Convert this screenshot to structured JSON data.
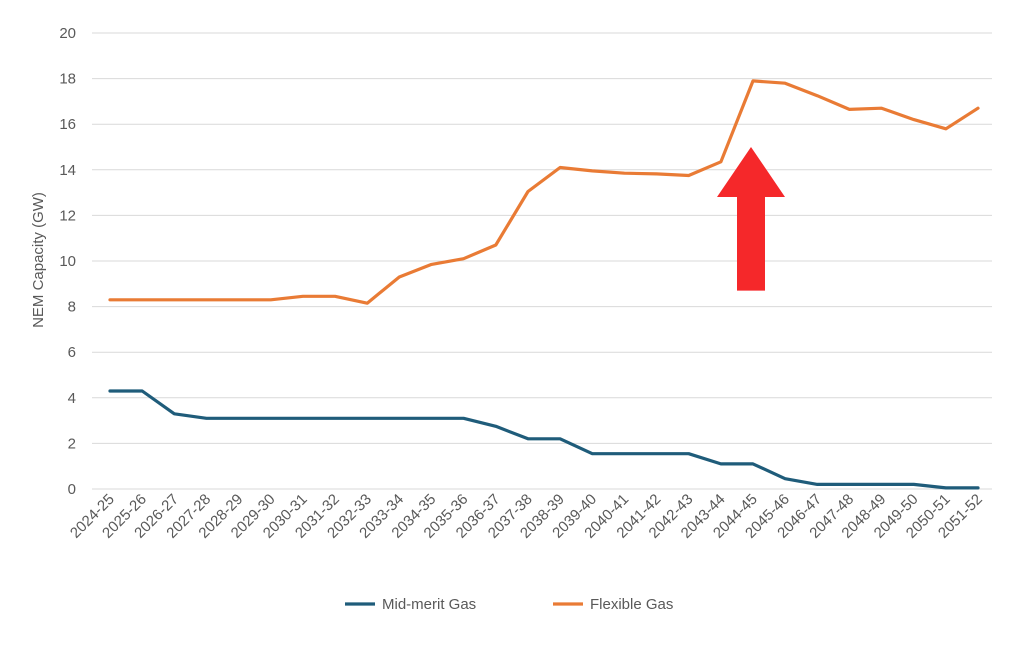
{
  "chart_data": {
    "type": "line",
    "title": "",
    "xlabel": "",
    "ylabel": "NEM Capacity (GW)",
    "ylim": [
      0,
      20
    ],
    "yticks": [
      0,
      2,
      4,
      6,
      8,
      10,
      12,
      14,
      16,
      18,
      20
    ],
    "grid": true,
    "legend_position": "bottom",
    "categories": [
      "2024-25",
      "2025-26",
      "2026-27",
      "2027-28",
      "2028-29",
      "2029-30",
      "2030-31",
      "2031-32",
      "2032-33",
      "2033-34",
      "2034-35",
      "2035-36",
      "2036-37",
      "2037-38",
      "2038-39",
      "2039-40",
      "2040-41",
      "2041-42",
      "2042-43",
      "2043-44",
      "2044-45",
      "2045-46",
      "2046-47",
      "2047-48",
      "2048-49",
      "2049-50",
      "2050-51",
      "2051-52"
    ],
    "series": [
      {
        "name": "Mid-merit Gas",
        "color": "#1f5c7a",
        "values": [
          4.3,
          4.3,
          3.3,
          3.1,
          3.1,
          3.1,
          3.1,
          3.1,
          3.1,
          3.1,
          3.1,
          3.1,
          2.75,
          2.2,
          2.2,
          1.55,
          1.55,
          1.55,
          1.55,
          1.1,
          1.1,
          0.45,
          0.2,
          0.2,
          0.2,
          0.2,
          0.05,
          0.05
        ]
      },
      {
        "name": "Flexible Gas",
        "color": "#e97b35",
        "values": [
          8.3,
          8.3,
          8.3,
          8.3,
          8.3,
          8.3,
          8.45,
          8.45,
          8.15,
          9.3,
          9.85,
          10.1,
          10.7,
          13.05,
          14.1,
          13.95,
          13.85,
          13.82,
          13.75,
          14.35,
          17.9,
          17.8,
          17.25,
          16.65,
          16.7,
          16.2,
          15.8,
          16.7
        ]
      }
    ],
    "annotations": [
      {
        "type": "arrow",
        "direction": "up",
        "color": "#f5282a",
        "category": "2044-45",
        "y_from": 8.7,
        "y_to": 15.0
      }
    ]
  }
}
